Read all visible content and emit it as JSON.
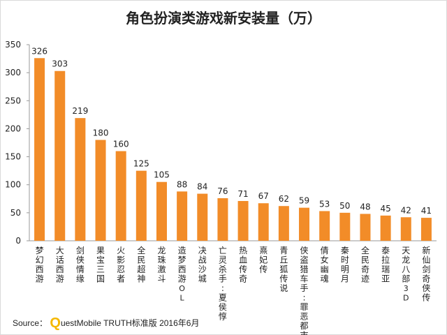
{
  "title": "角色扮演类游戏新安装量（万）",
  "source": {
    "label": "Source：",
    "brand_initial": "Q",
    "text": "uestMobile TRUTH标准版 2016年6月"
  },
  "colors": {
    "bar": "#f28c28",
    "axis": "#999999",
    "text": "#222222"
  },
  "chart_data": {
    "type": "bar",
    "title": "角色扮演类游戏新安装量（万）",
    "xlabel": "",
    "ylabel": "",
    "ylim": [
      0,
      350
    ],
    "yticks": [
      0,
      50,
      100,
      150,
      200,
      250,
      300,
      350
    ],
    "grid": false,
    "categories": [
      "梦幻西游",
      "大话西游",
      "剑侠情缘",
      "果宝三国",
      "火影忍者",
      "全民超神",
      "龙珠激斗",
      "造梦西游OL",
      "决战沙城",
      "亡灵杀手:夏侯惇",
      "热血传奇",
      "熹妃传",
      "青丘狐传说",
      "侠盗猎车手:罪恶都市",
      "倩女幽魂",
      "秦时明月",
      "全民奇迹",
      "泰拉瑞亚",
      "天龙八部3D",
      "新仙剑奇侠传"
    ],
    "values": [
      326,
      303,
      219,
      180,
      160,
      125,
      105,
      88,
      84,
      76,
      71,
      67,
      62,
      59,
      53,
      50,
      48,
      45,
      42,
      41
    ]
  }
}
